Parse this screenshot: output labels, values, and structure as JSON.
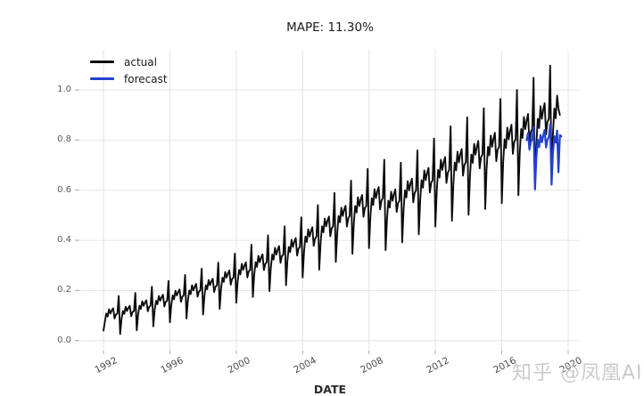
{
  "watermark": {
    "text": "知乎 @凤凰AI",
    "color": "#cbcbcb"
  },
  "chart_data": {
    "type": "line",
    "title": "MAPE: 11.30%",
    "xlabel": "DATE",
    "ylabel": "",
    "grid": true,
    "background": "#ffffff",
    "x_ticks": [
      1992,
      1996,
      2000,
      2004,
      2008,
      2012,
      2016,
      2020
    ],
    "x_tick_labels": [
      "1992",
      "1996",
      "2000",
      "2004",
      "2008",
      "2012",
      "2016",
      "2020"
    ],
    "y_ticks": [
      0.0,
      0.2,
      0.4,
      0.6,
      0.8,
      1.0
    ],
    "y_tick_labels": [
      "0.0",
      "0.2",
      "0.4",
      "0.6",
      "0.8",
      "1.0"
    ],
    "xlim": [
      1990.6,
      2020.7
    ],
    "ylim": [
      -0.04,
      1.16
    ],
    "colors": {
      "grid": "#e4e4e4",
      "tick": "#a8a8a8",
      "title": "#1c1c1c"
    },
    "legend": {
      "position": "upper-left",
      "entries": [
        {
          "label": "actual",
          "color": "#0d0d0d"
        },
        {
          "label": "forecast",
          "color": "#2440cc"
        }
      ]
    },
    "x_unit": "decimal_year_monthly",
    "series": [
      {
        "name": "actual",
        "color": "#0d0d0d",
        "width": 1.9,
        "start_year": 1992.0,
        "step_years": 0.0833333,
        "values": [
          0.04,
          0.075,
          0.108,
          0.096,
          0.125,
          0.108,
          0.121,
          0.129,
          0.088,
          0.104,
          0.108,
          0.178,
          0.026,
          0.085,
          0.118,
          0.106,
          0.135,
          0.118,
          0.131,
          0.139,
          0.097,
          0.114,
          0.118,
          0.19,
          0.041,
          0.103,
          0.139,
          0.126,
          0.157,
          0.139,
          0.152,
          0.161,
          0.117,
          0.134,
          0.139,
          0.215,
          0.057,
          0.122,
          0.159,
          0.145,
          0.178,
          0.159,
          0.173,
          0.183,
          0.136,
          0.155,
          0.159,
          0.238,
          0.073,
          0.141,
          0.18,
          0.165,
          0.199,
          0.18,
          0.194,
          0.204,
          0.155,
          0.175,
          0.18,
          0.262,
          0.088,
          0.159,
          0.2,
          0.185,
          0.221,
          0.2,
          0.216,
          0.226,
          0.175,
          0.195,
          0.2,
          0.287,
          0.104,
          0.178,
          0.221,
          0.205,
          0.242,
          0.221,
          0.237,
          0.247,
          0.194,
          0.215,
          0.221,
          0.311,
          0.127,
          0.206,
          0.251,
          0.234,
          0.274,
          0.251,
          0.268,
          0.28,
          0.223,
          0.246,
          0.251,
          0.347,
          0.151,
          0.234,
          0.282,
          0.264,
          0.306,
          0.282,
          0.3,
          0.312,
          0.252,
          0.276,
          0.282,
          0.383,
          0.174,
          0.262,
          0.313,
          0.294,
          0.338,
          0.313,
          0.332,
          0.344,
          0.281,
          0.306,
          0.313,
          0.42,
          0.197,
          0.29,
          0.343,
          0.323,
          0.37,
          0.343,
          0.363,
          0.377,
          0.31,
          0.337,
          0.343,
          0.456,
          0.221,
          0.318,
          0.374,
          0.353,
          0.402,
          0.374,
          0.395,
          0.409,
          0.339,
          0.367,
          0.374,
          0.492,
          0.252,
          0.356,
          0.415,
          0.393,
          0.444,
          0.415,
          0.437,
          0.452,
          0.378,
          0.407,
          0.415,
          0.541,
          0.283,
          0.393,
          0.456,
          0.432,
          0.487,
          0.456,
          0.479,
          0.495,
          0.416,
          0.448,
          0.456,
          0.589,
          0.314,
          0.43,
          0.497,
          0.472,
          0.53,
          0.497,
          0.522,
          0.538,
          0.455,
          0.488,
          0.497,
          0.638,
          0.346,
          0.468,
          0.537,
          0.511,
          0.572,
          0.537,
          0.564,
          0.581,
          0.494,
          0.529,
          0.537,
          0.685,
          0.369,
          0.496,
          0.568,
          0.541,
          0.604,
          0.568,
          0.595,
          0.613,
          0.523,
          0.559,
          0.568,
          0.722,
          0.361,
          0.486,
          0.558,
          0.531,
          0.594,
          0.558,
          0.585,
          0.603,
          0.513,
          0.549,
          0.558,
          0.71,
          0.392,
          0.524,
          0.599,
          0.571,
          0.636,
          0.599,
          0.627,
          0.646,
          0.552,
          0.589,
          0.599,
          0.759,
          0.424,
          0.561,
          0.64,
          0.61,
          0.679,
          0.64,
          0.669,
          0.689,
          0.591,
          0.63,
          0.64,
          0.806,
          0.455,
          0.599,
          0.681,
          0.65,
          0.722,
          0.681,
          0.711,
          0.732,
          0.629,
          0.67,
          0.681,
          0.855,
          0.478,
          0.626,
          0.711,
          0.679,
          0.754,
          0.711,
          0.743,
          0.764,
          0.658,
          0.701,
          0.711,
          0.891,
          0.502,
          0.655,
          0.742,
          0.709,
          0.785,
          0.742,
          0.775,
          0.796,
          0.687,
          0.731,
          0.742,
          0.927,
          0.525,
          0.683,
          0.773,
          0.739,
          0.818,
          0.773,
          0.806,
          0.829,
          0.716,
          0.761,
          0.773,
          0.964,
          0.548,
          0.71,
          0.803,
          0.768,
          0.85,
          0.803,
          0.838,
          0.861,
          0.745,
          0.792,
          0.803,
          1.0,
          0.58,
          0.748,
          0.844,
          0.808,
          0.892,
          0.844,
          0.88,
          0.904,
          0.784,
          0.832,
          0.844,
          1.048,
          0.611,
          0.785,
          0.885,
          0.848,
          0.935,
          0.885,
          0.922,
          0.947,
          0.823,
          0.872,
          0.885,
          1.097,
          0.642,
          0.823,
          0.926,
          0.887,
          0.977,
          0.926,
          0.9
        ]
      },
      {
        "name": "forecast",
        "color": "#2440cc",
        "width": 2.2,
        "start_year": 2017.5,
        "step_years": 0.0833333,
        "values": [
          0.8,
          0.828,
          0.762,
          0.793,
          0.804,
          0.852,
          0.603,
          0.731,
          0.801,
          0.772,
          0.82,
          0.791,
          0.818,
          0.84,
          0.771,
          0.801,
          0.812,
          0.861,
          0.622,
          0.748,
          0.815,
          0.79,
          0.838,
          0.672,
          0.82,
          0.815
        ]
      }
    ]
  }
}
